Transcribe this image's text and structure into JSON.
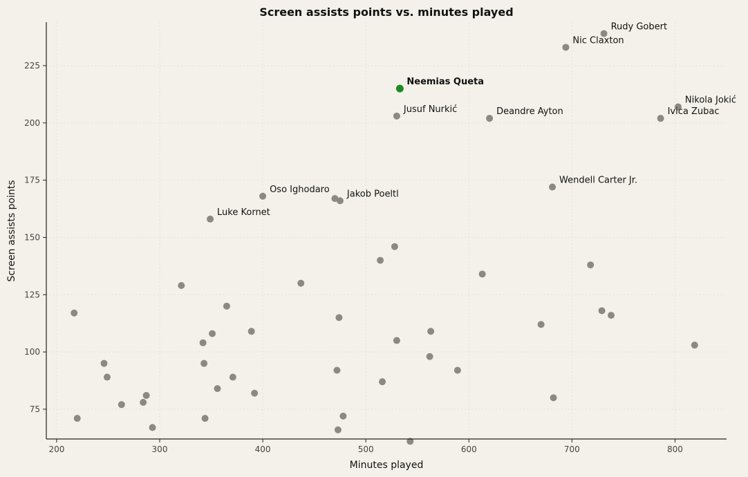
{
  "chart_data": {
    "type": "scatter",
    "title": "Screen assists points vs. minutes played",
    "xlabel": "Minutes played",
    "ylabel": "Screen assists points",
    "xlim": [
      190,
      850
    ],
    "ylim": [
      62,
      244
    ],
    "xticks": [
      200,
      300,
      400,
      500,
      600,
      700,
      800
    ],
    "yticks": [
      75,
      100,
      125,
      150,
      175,
      200,
      225
    ],
    "grid": true,
    "colors": {
      "default": "#8b8983",
      "highlight": "#1f8a1f"
    },
    "points": [
      {
        "x": 731,
        "y": 239,
        "label": "Rudy Gobert"
      },
      {
        "x": 694,
        "y": 233,
        "label": "Nic Claxton"
      },
      {
        "x": 533,
        "y": 215,
        "label": "Neemias Queta",
        "highlight": true
      },
      {
        "x": 803,
        "y": 207,
        "label": "Nikola Jokić"
      },
      {
        "x": 530,
        "y": 203,
        "label": "Jusuf Nurkić"
      },
      {
        "x": 620,
        "y": 202,
        "label": "Deandre Ayton"
      },
      {
        "x": 786,
        "y": 202,
        "label": "Ivica Zubac"
      },
      {
        "x": 681,
        "y": 172,
        "label": "Wendell Carter Jr."
      },
      {
        "x": 400,
        "y": 168,
        "label": "Oso Ighodaro"
      },
      {
        "x": 470,
        "y": 167
      },
      {
        "x": 475,
        "y": 166,
        "label": "Jakob Poeltl"
      },
      {
        "x": 349,
        "y": 158,
        "label": "Luke Kornet"
      },
      {
        "x": 528,
        "y": 146
      },
      {
        "x": 514,
        "y": 140
      },
      {
        "x": 718,
        "y": 138
      },
      {
        "x": 613,
        "y": 134
      },
      {
        "x": 437,
        "y": 130
      },
      {
        "x": 321,
        "y": 129
      },
      {
        "x": 365,
        "y": 120
      },
      {
        "x": 729,
        "y": 118
      },
      {
        "x": 217,
        "y": 117
      },
      {
        "x": 738,
        "y": 116
      },
      {
        "x": 474,
        "y": 115
      },
      {
        "x": 670,
        "y": 112
      },
      {
        "x": 563,
        "y": 109
      },
      {
        "x": 389,
        "y": 109
      },
      {
        "x": 351,
        "y": 108
      },
      {
        "x": 530,
        "y": 105
      },
      {
        "x": 342,
        "y": 104
      },
      {
        "x": 819,
        "y": 103
      },
      {
        "x": 562,
        "y": 98
      },
      {
        "x": 246,
        "y": 95
      },
      {
        "x": 343,
        "y": 95
      },
      {
        "x": 472,
        "y": 92
      },
      {
        "x": 589,
        "y": 92
      },
      {
        "x": 249,
        "y": 89
      },
      {
        "x": 371,
        "y": 89
      },
      {
        "x": 516,
        "y": 87
      },
      {
        "x": 356,
        "y": 84
      },
      {
        "x": 392,
        "y": 82
      },
      {
        "x": 287,
        "y": 81
      },
      {
        "x": 682,
        "y": 80
      },
      {
        "x": 284,
        "y": 78
      },
      {
        "x": 263,
        "y": 77
      },
      {
        "x": 478,
        "y": 72
      },
      {
        "x": 220,
        "y": 71
      },
      {
        "x": 344,
        "y": 71
      },
      {
        "x": 293,
        "y": 67
      },
      {
        "x": 473,
        "y": 66
      },
      {
        "x": 543,
        "y": 61
      }
    ]
  }
}
